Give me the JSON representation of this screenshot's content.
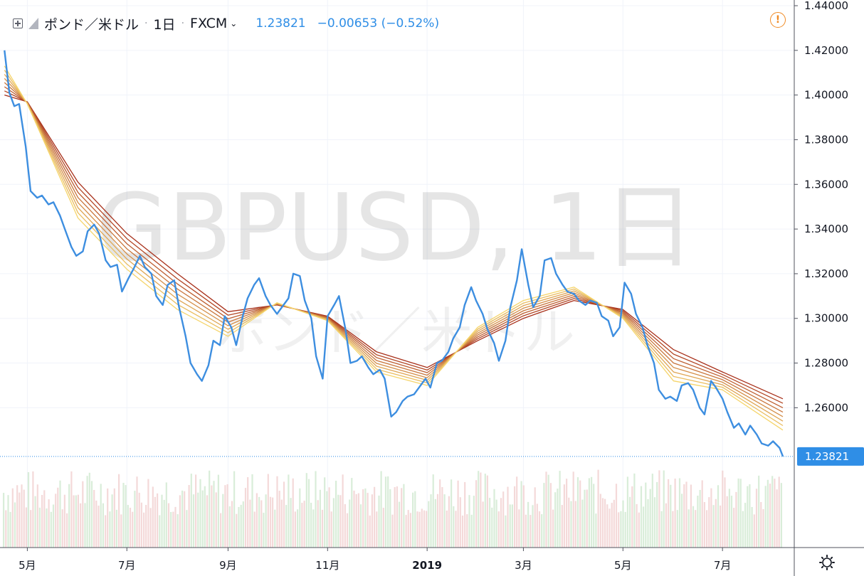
{
  "header": {
    "symbol": "ポンド／米ドル",
    "separator": "·",
    "interval": "1日",
    "exchange": "FXCM",
    "price": "1.23821",
    "change": "−0.00653 (−0.52%)"
  },
  "watermark": {
    "line1": "GBPUSD, 1日",
    "line2": "ポンド／米ドル"
  },
  "icons": {
    "symbol_toggle": "plus-square-icon",
    "logo": "triangle-logo-icon",
    "exchange_menu": "chevron-down-icon",
    "alert": "exclamation-circle-icon",
    "settings": "gear-icon"
  },
  "colors": {
    "price_line": "#3d8ee0",
    "ribbon_fast": "#f5d46a",
    "ribbon_slow": "#a8301a",
    "volume_up": "#cfe8cf",
    "volume_down": "#f1cfcf",
    "last_price_label": "#2f8ee6"
  },
  "chart_data": {
    "type": "line",
    "title": "",
    "xlabel": "",
    "ylabel": "",
    "x_range": [
      "2018-04-16",
      "2019-08-07"
    ],
    "ylim": [
      1.22,
      1.44
    ],
    "y_ticks": [
      "1.44000",
      "1.42000",
      "1.40000",
      "1.38000",
      "1.36000",
      "1.34000",
      "1.32000",
      "1.30000",
      "1.28000",
      "1.26000"
    ],
    "x_ticks": [
      {
        "label": "5月",
        "date": "2018-05-01"
      },
      {
        "label": "7月",
        "date": "2018-07-01"
      },
      {
        "label": "9月",
        "date": "2018-09-01"
      },
      {
        "label": "11月",
        "date": "2018-11-01"
      },
      {
        "label": "2019",
        "date": "2019-01-01",
        "bold": true
      },
      {
        "label": "3月",
        "date": "2019-03-01"
      },
      {
        "label": "5月",
        "date": "2019-05-01"
      },
      {
        "label": "7月",
        "date": "2019-07-01"
      }
    ],
    "last_price_label": "1.23821",
    "price_series": {
      "name": "",
      "points": [
        [
          "2018-04-17",
          1.42
        ],
        [
          "2018-04-20",
          1.401
        ],
        [
          "2018-04-23",
          1.395
        ],
        [
          "2018-04-26",
          1.396
        ],
        [
          "2018-04-30",
          1.377
        ],
        [
          "2018-05-03",
          1.357
        ],
        [
          "2018-05-07",
          1.354
        ],
        [
          "2018-05-10",
          1.355
        ],
        [
          "2018-05-14",
          1.351
        ],
        [
          "2018-05-17",
          1.352
        ],
        [
          "2018-05-21",
          1.346
        ],
        [
          "2018-05-24",
          1.34
        ],
        [
          "2018-05-28",
          1.332
        ],
        [
          "2018-05-31",
          1.328
        ],
        [
          "2018-06-04",
          1.33
        ],
        [
          "2018-06-07",
          1.339
        ],
        [
          "2018-06-11",
          1.342
        ],
        [
          "2018-06-14",
          1.338
        ],
        [
          "2018-06-18",
          1.326
        ],
        [
          "2018-06-21",
          1.323
        ],
        [
          "2018-06-25",
          1.324
        ],
        [
          "2018-06-28",
          1.312
        ],
        [
          "2018-07-02",
          1.318
        ],
        [
          "2018-07-05",
          1.322
        ],
        [
          "2018-07-09",
          1.328
        ],
        [
          "2018-07-12",
          1.323
        ],
        [
          "2018-07-16",
          1.32
        ],
        [
          "2018-07-19",
          1.31
        ],
        [
          "2018-07-23",
          1.306
        ],
        [
          "2018-07-26",
          1.315
        ],
        [
          "2018-07-30",
          1.317
        ],
        [
          "2018-08-02",
          1.305
        ],
        [
          "2018-08-06",
          1.292
        ],
        [
          "2018-08-09",
          1.28
        ],
        [
          "2018-08-13",
          1.275
        ],
        [
          "2018-08-16",
          1.272
        ],
        [
          "2018-08-20",
          1.279
        ],
        [
          "2018-08-23",
          1.29
        ],
        [
          "2018-08-27",
          1.288
        ],
        [
          "2018-08-30",
          1.301
        ],
        [
          "2018-09-03",
          1.296
        ],
        [
          "2018-09-06",
          1.288
        ],
        [
          "2018-09-10",
          1.301
        ],
        [
          "2018-09-13",
          1.309
        ],
        [
          "2018-09-17",
          1.315
        ],
        [
          "2018-09-20",
          1.318
        ],
        [
          "2018-09-24",
          1.31
        ],
        [
          "2018-09-27",
          1.306
        ],
        [
          "2018-10-01",
          1.302
        ],
        [
          "2018-10-04",
          1.305
        ],
        [
          "2018-10-08",
          1.309
        ],
        [
          "2018-10-11",
          1.32
        ],
        [
          "2018-10-15",
          1.319
        ],
        [
          "2018-10-18",
          1.308
        ],
        [
          "2018-10-22",
          1.3
        ],
        [
          "2018-10-25",
          1.283
        ],
        [
          "2018-10-29",
          1.273
        ],
        [
          "2018-11-01",
          1.301
        ],
        [
          "2018-11-05",
          1.306
        ],
        [
          "2018-11-08",
          1.31
        ],
        [
          "2018-11-12",
          1.295
        ],
        [
          "2018-11-15",
          1.28
        ],
        [
          "2018-11-19",
          1.281
        ],
        [
          "2018-11-22",
          1.283
        ],
        [
          "2018-11-26",
          1.278
        ],
        [
          "2018-11-29",
          1.275
        ],
        [
          "2018-12-03",
          1.277
        ],
        [
          "2018-12-06",
          1.273
        ],
        [
          "2018-12-10",
          1.256
        ],
        [
          "2018-12-13",
          1.258
        ],
        [
          "2018-12-17",
          1.263
        ],
        [
          "2018-12-20",
          1.265
        ],
        [
          "2018-12-24",
          1.266
        ],
        [
          "2018-12-27",
          1.269
        ],
        [
          "2018-12-31",
          1.273
        ],
        [
          "2019-01-03",
          1.269
        ],
        [
          "2019-01-07",
          1.28
        ],
        [
          "2019-01-10",
          1.281
        ],
        [
          "2019-01-14",
          1.285
        ],
        [
          "2019-01-17",
          1.291
        ],
        [
          "2019-01-21",
          1.296
        ],
        [
          "2019-01-24",
          1.306
        ],
        [
          "2019-01-28",
          1.314
        ],
        [
          "2019-01-31",
          1.308
        ],
        [
          "2019-02-04",
          1.302
        ],
        [
          "2019-02-07",
          1.295
        ],
        [
          "2019-02-11",
          1.289
        ],
        [
          "2019-02-14",
          1.281
        ],
        [
          "2019-02-18",
          1.29
        ],
        [
          "2019-02-21",
          1.305
        ],
        [
          "2019-02-25",
          1.317
        ],
        [
          "2019-02-28",
          1.331
        ],
        [
          "2019-03-04",
          1.315
        ],
        [
          "2019-03-07",
          1.305
        ],
        [
          "2019-03-11",
          1.31
        ],
        [
          "2019-03-14",
          1.326
        ],
        [
          "2019-03-18",
          1.327
        ],
        [
          "2019-03-21",
          1.32
        ],
        [
          "2019-03-25",
          1.315
        ],
        [
          "2019-03-28",
          1.312
        ],
        [
          "2019-04-01",
          1.311
        ],
        [
          "2019-04-04",
          1.308
        ],
        [
          "2019-04-08",
          1.306
        ],
        [
          "2019-04-11",
          1.308
        ],
        [
          "2019-04-15",
          1.307
        ],
        [
          "2019-04-18",
          1.301
        ],
        [
          "2019-04-22",
          1.299
        ],
        [
          "2019-04-25",
          1.292
        ],
        [
          "2019-04-29",
          1.296
        ],
        [
          "2019-05-02",
          1.316
        ],
        [
          "2019-05-06",
          1.311
        ],
        [
          "2019-05-09",
          1.302
        ],
        [
          "2019-05-13",
          1.296
        ],
        [
          "2019-05-16",
          1.288
        ],
        [
          "2019-05-20",
          1.28
        ],
        [
          "2019-05-23",
          1.268
        ],
        [
          "2019-05-27",
          1.264
        ],
        [
          "2019-05-30",
          1.265
        ],
        [
          "2019-06-03",
          1.263
        ],
        [
          "2019-06-06",
          1.27
        ],
        [
          "2019-06-10",
          1.271
        ],
        [
          "2019-06-13",
          1.268
        ],
        [
          "2019-06-17",
          1.26
        ],
        [
          "2019-06-20",
          1.257
        ],
        [
          "2019-06-24",
          1.272
        ],
        [
          "2019-06-27",
          1.269
        ],
        [
          "2019-07-01",
          1.264
        ],
        [
          "2019-07-04",
          1.258
        ],
        [
          "2019-07-08",
          1.251
        ],
        [
          "2019-07-11",
          1.253
        ],
        [
          "2019-07-15",
          1.248
        ],
        [
          "2019-07-18",
          1.252
        ],
        [
          "2019-07-22",
          1.248
        ],
        [
          "2019-07-25",
          1.244
        ],
        [
          "2019-07-29",
          1.243
        ],
        [
          "2019-08-01",
          1.245
        ],
        [
          "2019-08-05",
          1.242
        ],
        [
          "2019-08-07",
          1.2382
        ]
      ]
    },
    "moving_average_ribbon": {
      "count": 8,
      "slowest": [
        [
          "2018-04-17",
          1.4
        ],
        [
          "2018-05-01",
          1.397
        ],
        [
          "2018-06-01",
          1.361
        ],
        [
          "2018-07-01",
          1.338
        ],
        [
          "2018-08-01",
          1.32
        ],
        [
          "2018-09-01",
          1.303
        ],
        [
          "2018-10-01",
          1.306
        ],
        [
          "2018-11-01",
          1.301
        ],
        [
          "2018-12-01",
          1.285
        ],
        [
          "2019-01-01",
          1.278
        ],
        [
          "2019-02-01",
          1.29
        ],
        [
          "2019-03-01",
          1.3
        ],
        [
          "2019-04-01",
          1.308
        ],
        [
          "2019-05-01",
          1.304
        ],
        [
          "2019-06-01",
          1.286
        ],
        [
          "2019-07-01",
          1.276
        ],
        [
          "2019-08-07",
          1.264
        ]
      ],
      "fastest": [
        [
          "2018-04-17",
          1.413
        ],
        [
          "2018-05-01",
          1.396
        ],
        [
          "2018-06-01",
          1.345
        ],
        [
          "2018-07-01",
          1.322
        ],
        [
          "2018-08-01",
          1.304
        ],
        [
          "2018-09-01",
          1.292
        ],
        [
          "2018-10-01",
          1.307
        ],
        [
          "2018-11-01",
          1.299
        ],
        [
          "2018-12-01",
          1.276
        ],
        [
          "2019-01-01",
          1.27
        ],
        [
          "2019-02-01",
          1.296
        ],
        [
          "2019-03-01",
          1.308
        ],
        [
          "2019-04-01",
          1.314
        ],
        [
          "2019-05-01",
          1.3
        ],
        [
          "2019-06-01",
          1.272
        ],
        [
          "2019-07-01",
          1.268
        ],
        [
          "2019-08-07",
          1.25
        ]
      ]
    }
  }
}
